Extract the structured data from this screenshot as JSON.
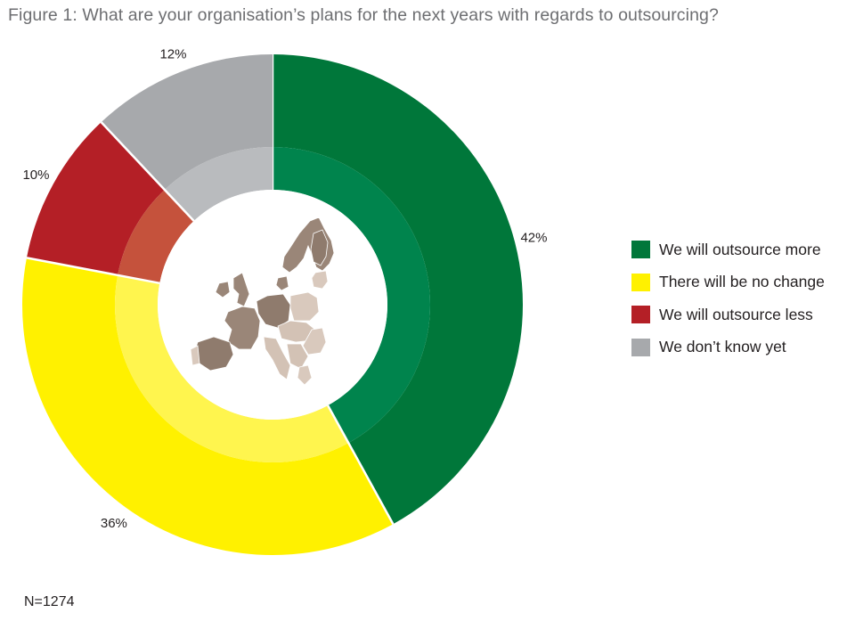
{
  "title": "Figure 1: What are your organisation’s plans for the next years with regards to outsourcing?",
  "footnote": "N=1274",
  "chart_data": {
    "type": "pie",
    "subtype": "donut",
    "title": "Figure 1: What are your organisation’s plans for the next years with regards to outsourcing?",
    "categories": [
      "We will outsource more",
      "There will be no change",
      "We will outsource less",
      "We don’t know yet"
    ],
    "values": [
      42,
      36,
      10,
      12
    ],
    "labels": [
      "42%",
      "36%",
      "10%",
      "12%"
    ],
    "colors": [
      "#00773a",
      "#fff100",
      "#b41f26",
      "#a7a9ac"
    ],
    "inner_colors": [
      "#00844d",
      "#fff54e",
      "#c5523c",
      "#b9bbbe"
    ],
    "start": "12 o'clock",
    "direction": "clockwise",
    "legend_position": "right",
    "center_image": "map of Europe"
  },
  "legend": {
    "items": [
      {
        "label": "We will outsource more",
        "color": "#00773a"
      },
      {
        "label": "There will be no change",
        "color": "#fff100"
      },
      {
        "label": "We will outsource less",
        "color": "#b41f26"
      },
      {
        "label": "We don’t know yet",
        "color": "#a7a9ac"
      }
    ]
  }
}
